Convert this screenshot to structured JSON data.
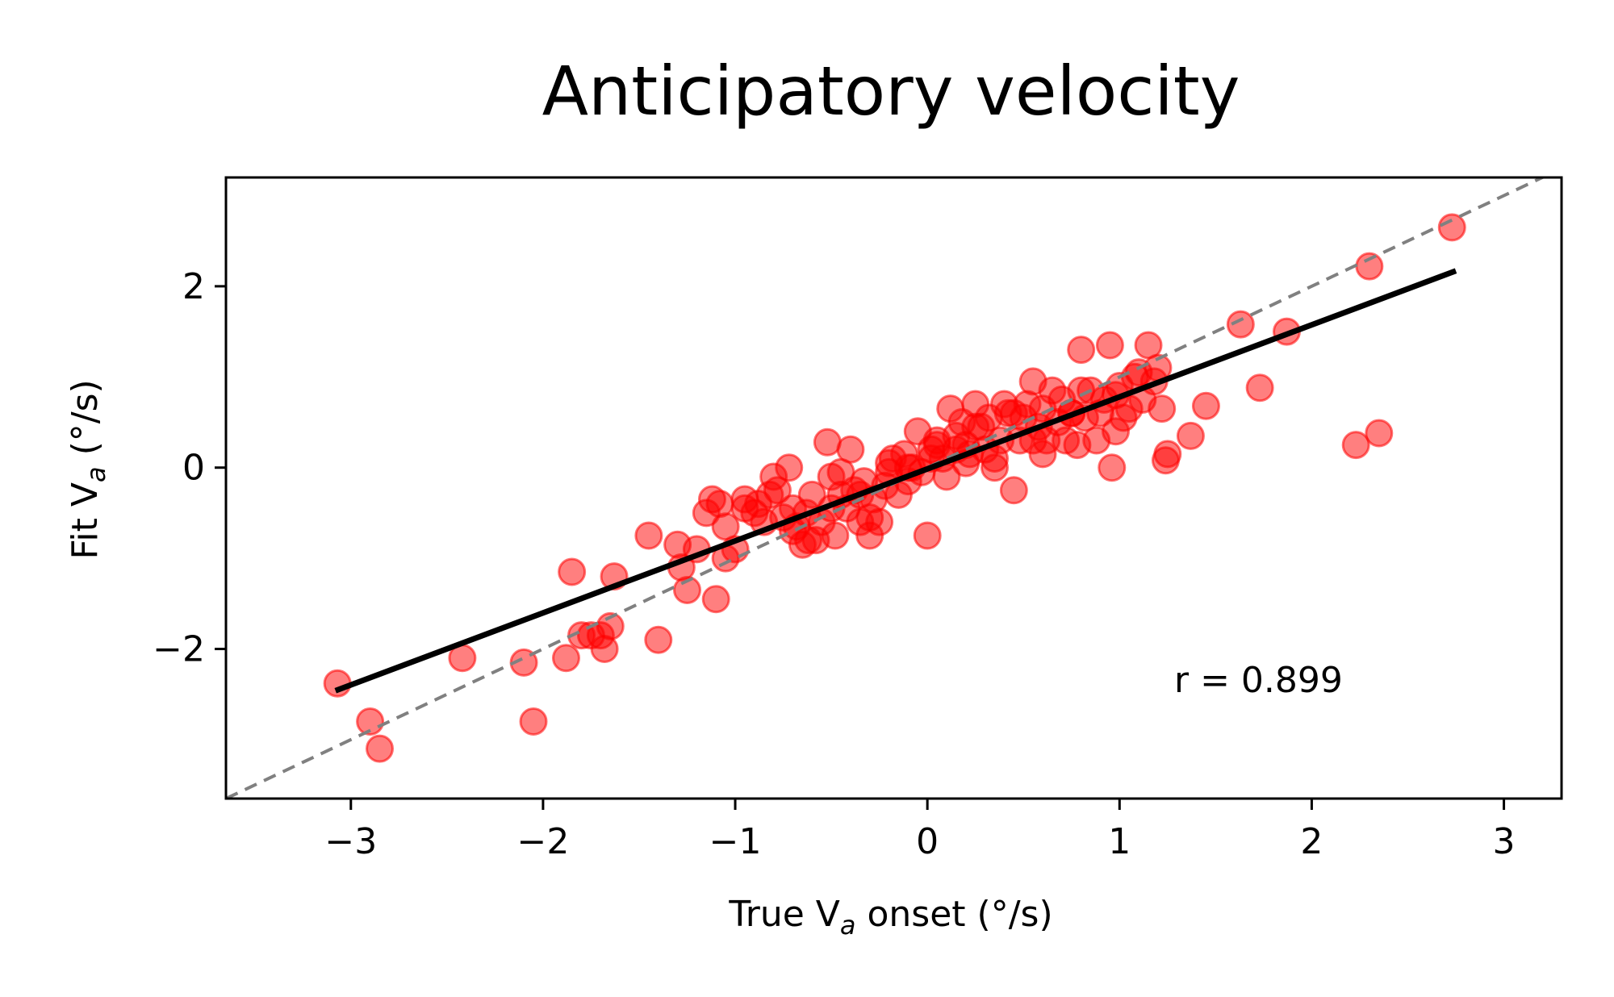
{
  "chart_data": {
    "type": "scatter",
    "title": "Anticipatory velocity",
    "xlabel": {
      "pre": "True V",
      "sub": "a",
      "post": " onset (°/s)"
    },
    "ylabel": {
      "pre": "Fit V",
      "sub": "a",
      "post": " (°/s)"
    },
    "xlim": [
      -3.65,
      3.3
    ],
    "ylim": [
      -3.65,
      3.2
    ],
    "xticks": [
      -3,
      -2,
      -1,
      0,
      1,
      2,
      3
    ],
    "xtick_labels": [
      "−3",
      "−2",
      "−1",
      "0",
      "1",
      "2",
      "3"
    ],
    "yticks": [
      -2,
      0,
      2
    ],
    "ytick_labels": [
      "−2",
      "0",
      "2"
    ],
    "grid": false,
    "point_color": "#ff0000",
    "fit_color": "#000000",
    "identity_color": "#808080",
    "annotation": "r = 0.899",
    "fit_line": {
      "x": [
        -3.08,
        2.75
      ],
      "y": [
        -2.46,
        2.17
      ]
    },
    "identity_line": {
      "x": [
        -3.65,
        3.3
      ],
      "y": [
        -3.65,
        3.3
      ]
    },
    "points": {
      "x": [
        -3.07,
        -2.9,
        -2.85,
        -2.42,
        -2.1,
        -2.05,
        -1.88,
        -1.85,
        -1.8,
        -1.75,
        -1.7,
        -1.68,
        -1.65,
        -1.63,
        -1.45,
        -1.4,
        -1.3,
        -1.28,
        -1.25,
        -1.2,
        -1.15,
        -1.12,
        -1.1,
        -1.08,
        -1.05,
        -1.05,
        -1.0,
        -0.95,
        -0.9,
        -0.88,
        -0.85,
        -0.82,
        -0.8,
        -0.78,
        -0.75,
        -0.72,
        -0.7,
        -0.7,
        -0.68,
        -0.65,
        -0.63,
        -0.6,
        -0.58,
        -0.55,
        -0.52,
        -0.5,
        -0.48,
        -0.45,
        -0.42,
        -0.4,
        -0.38,
        -0.35,
        -0.33,
        -0.3,
        -0.28,
        -0.25,
        -0.22,
        -0.2,
        -0.18,
        -0.15,
        -0.12,
        -0.1,
        -0.08,
        -0.05,
        -0.03,
        0.0,
        0.02,
        0.05,
        0.08,
        0.1,
        0.12,
        0.15,
        0.18,
        0.2,
        0.22,
        0.25,
        0.28,
        0.3,
        0.32,
        0.35,
        0.38,
        0.4,
        0.42,
        0.45,
        0.48,
        0.5,
        0.52,
        0.55,
        0.58,
        0.6,
        0.62,
        0.65,
        0.68,
        0.7,
        0.72,
        0.75,
        0.78,
        0.8,
        0.82,
        0.85,
        0.88,
        0.9,
        0.92,
        0.95,
        0.98,
        1.0,
        1.02,
        1.05,
        1.08,
        1.1,
        1.12,
        1.15,
        1.2,
        1.22,
        1.24,
        1.25,
        1.37,
        1.45,
        1.63,
        1.73,
        1.87,
        2.23,
        2.3,
        2.35,
        2.73,
        -0.95,
        -0.5,
        -0.35,
        -0.2,
        0.02,
        0.15,
        0.25,
        0.45,
        0.6,
        0.8,
        0.96,
        1.18,
        -0.62,
        -0.45,
        -0.3,
        -0.1,
        0.05,
        0.2,
        0.35,
        0.55,
        0.75,
        0.98
      ],
      "y": [
        -2.38,
        -2.8,
        -3.1,
        -2.1,
        -2.15,
        -2.8,
        -2.1,
        -1.15,
        -1.85,
        -1.85,
        -1.85,
        -2.0,
        -1.75,
        -1.2,
        -0.75,
        -1.9,
        -0.85,
        -1.1,
        -1.35,
        -0.9,
        -0.5,
        -0.35,
        -1.45,
        -0.4,
        -1.0,
        -0.65,
        -0.9,
        -0.45,
        -0.5,
        -0.4,
        -0.6,
        -0.3,
        -0.1,
        -0.25,
        -0.55,
        0.0,
        -0.7,
        -0.45,
        -0.65,
        -0.85,
        -0.5,
        -0.3,
        -0.8,
        -0.6,
        0.28,
        -0.1,
        -0.75,
        -0.05,
        -0.45,
        0.2,
        -0.25,
        -0.6,
        -0.15,
        -0.75,
        -0.35,
        -0.6,
        -0.2,
        -0.05,
        0.1,
        -0.3,
        0.15,
        -0.15,
        0.0,
        0.4,
        -0.05,
        -0.75,
        0.2,
        0.3,
        0.1,
        -0.1,
        0.65,
        0.35,
        0.5,
        0.25,
        0.15,
        0.7,
        0.45,
        0.2,
        0.55,
        0.0,
        0.3,
        0.7,
        0.6,
        -0.25,
        0.3,
        0.55,
        0.7,
        0.95,
        0.45,
        0.65,
        0.3,
        0.85,
        0.5,
        0.75,
        0.3,
        0.6,
        0.25,
        1.3,
        0.55,
        0.85,
        0.3,
        0.6,
        0.75,
        1.35,
        0.4,
        0.9,
        0.55,
        0.65,
        1.0,
        1.05,
        0.75,
        1.35,
        1.1,
        0.65,
        0.08,
        0.15,
        0.35,
        0.68,
        1.58,
        0.88,
        1.5,
        0.25,
        2.22,
        0.38,
        2.65,
        -0.35,
        -0.45,
        -0.3,
        0.05,
        0.1,
        0.2,
        0.45,
        0.6,
        0.15,
        0.85,
        0.0,
        0.95,
        -0.8,
        -0.3,
        -0.55,
        0.0,
        0.25,
        0.05,
        0.1,
        0.3,
        0.6,
        0.8
      ]
    }
  }
}
